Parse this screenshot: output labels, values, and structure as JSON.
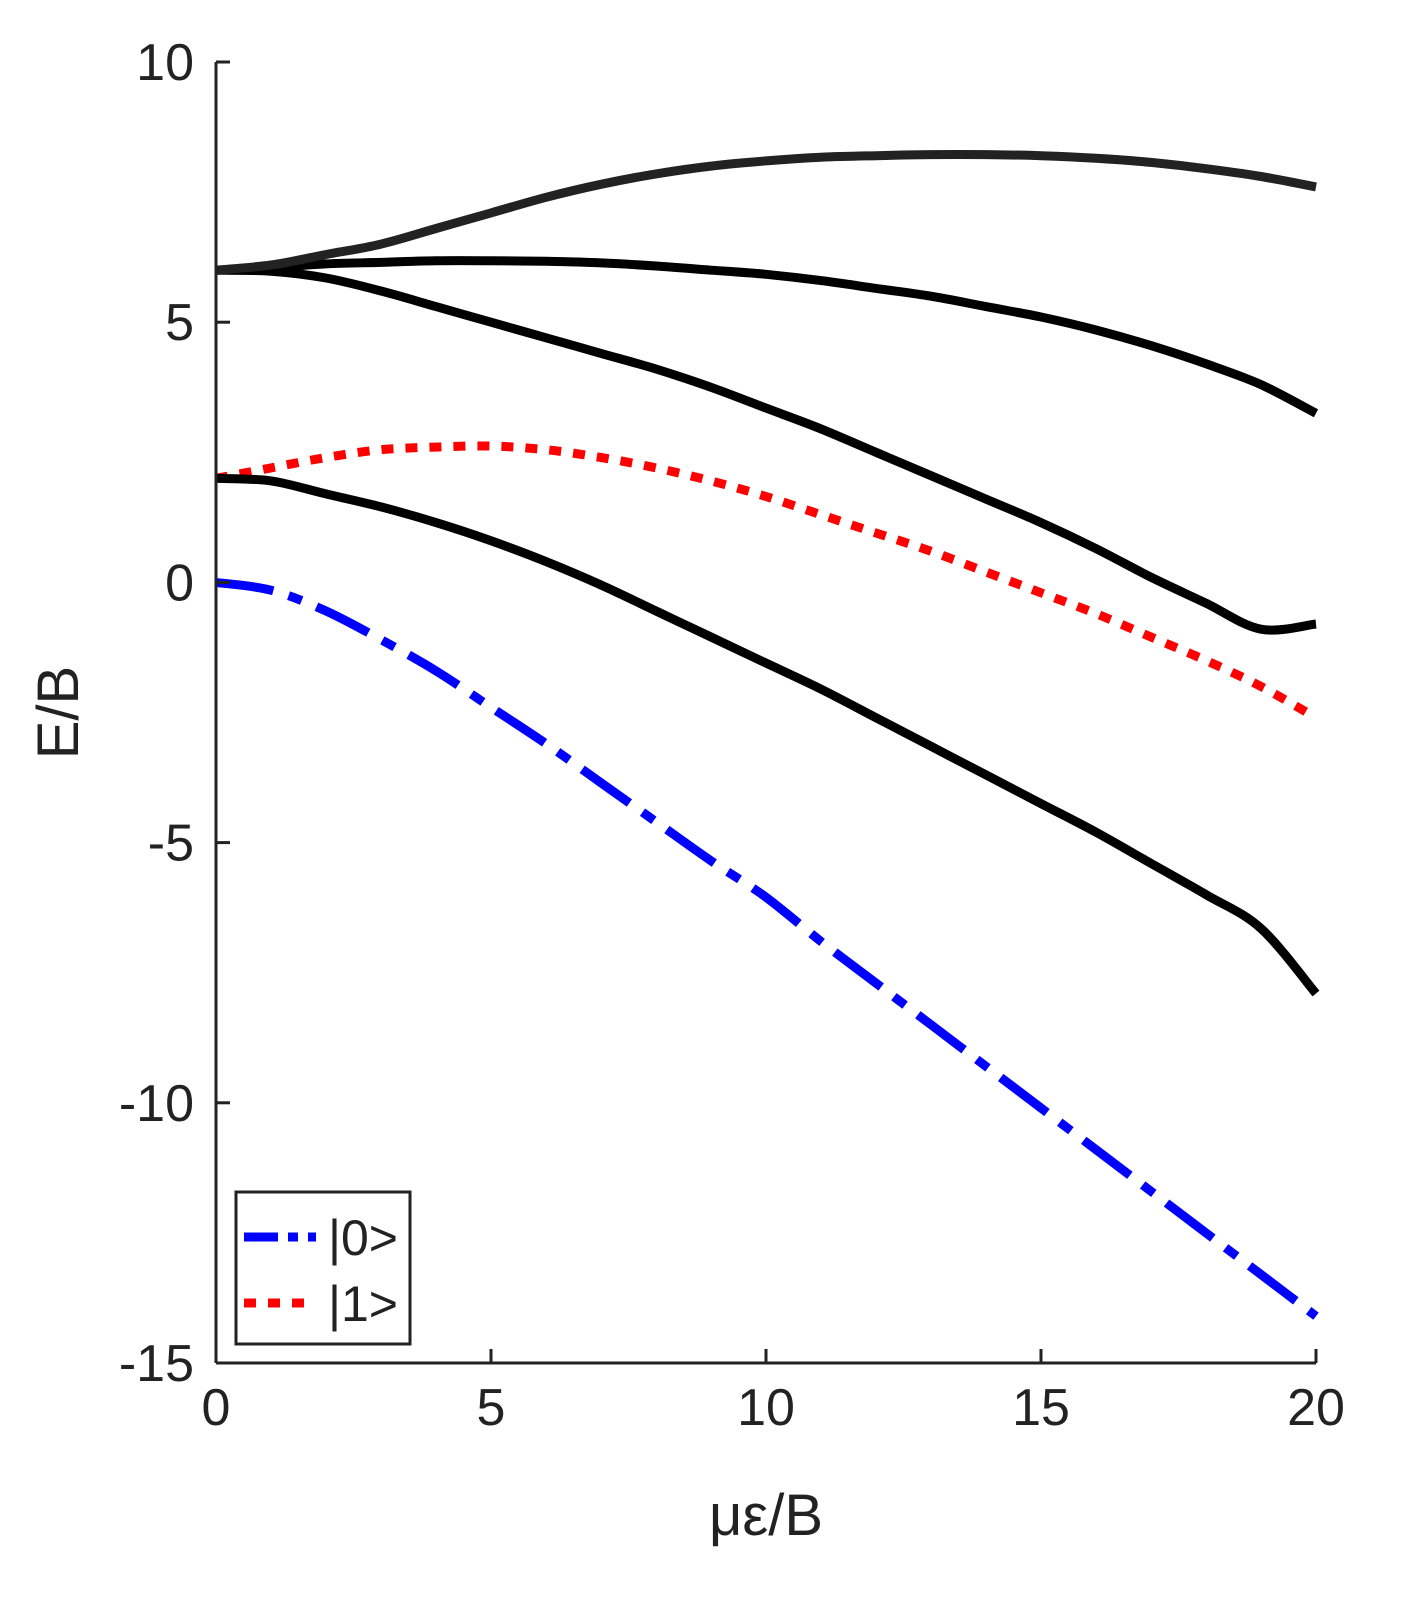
{
  "chart_data": {
    "type": "line",
    "xlabel": "με/B",
    "ylabel": "E/B",
    "xlim": [
      0,
      20
    ],
    "ylim": [
      -15,
      10
    ],
    "xticks": [
      0,
      5,
      10,
      15,
      20
    ],
    "xtick_labels": [
      "0",
      "5",
      "10",
      "15",
      "20"
    ],
    "yticks": [
      -15,
      -10,
      -5,
      0,
      5,
      10
    ],
    "ytick_labels": [
      "-15",
      "-10",
      "-5",
      "0",
      "5",
      "10"
    ],
    "grid": false,
    "legend_position": "bottom-left",
    "x": [
      0,
      1,
      2,
      3,
      4,
      5,
      6,
      7,
      8,
      9,
      10,
      11,
      12,
      13,
      14,
      15,
      16,
      17,
      18,
      19,
      20
    ],
    "series": [
      {
        "name": "|0>",
        "style": "dashdot",
        "color": "#0000ff",
        "in_legend": true,
        "values": [
          0.0,
          -0.15,
          -0.55,
          -1.1,
          -1.7,
          -2.4,
          -3.1,
          -3.85,
          -4.6,
          -5.35,
          -6.05,
          -6.9,
          -7.7,
          -8.5,
          -9.3,
          -10.1,
          -10.9,
          -11.7,
          -12.5,
          -13.3,
          -14.1
        ]
      },
      {
        "name": "|1>",
        "style": "dotted",
        "color": "#ff0000",
        "in_legend": true,
        "values": [
          2.0,
          2.2,
          2.4,
          2.55,
          2.6,
          2.62,
          2.55,
          2.4,
          2.2,
          1.95,
          1.65,
          1.3,
          0.95,
          0.6,
          0.2,
          -0.2,
          -0.6,
          -1.05,
          -1.5,
          -2.0,
          -2.6
        ]
      },
      {
        "style": "solid",
        "color": "#000000",
        "in_legend": false,
        "values": [
          2.0,
          1.95,
          1.7,
          1.45,
          1.15,
          0.8,
          0.4,
          -0.05,
          -0.55,
          -1.05,
          -1.55,
          -2.05,
          -2.6,
          -3.15,
          -3.7,
          -4.25,
          -4.8,
          -5.4,
          -6.0,
          -6.65,
          -7.9
        ]
      },
      {
        "style": "solid",
        "color": "#000000",
        "in_legend": false,
        "values": [
          6.0,
          5.98,
          5.85,
          5.6,
          5.3,
          5.0,
          4.7,
          4.4,
          4.1,
          3.75,
          3.35,
          2.95,
          2.5,
          2.05,
          1.6,
          1.15,
          0.65,
          0.1,
          -0.4,
          -0.9,
          -0.8
        ]
      },
      {
        "style": "solid",
        "color": "#000000",
        "in_legend": false,
        "values": [
          6.0,
          6.05,
          6.12,
          6.15,
          6.18,
          6.18,
          6.17,
          6.14,
          6.08,
          6.0,
          5.92,
          5.8,
          5.65,
          5.5,
          5.3,
          5.1,
          4.85,
          4.55,
          4.2,
          3.8,
          3.25
        ]
      },
      {
        "style": "solid",
        "color": "#222222",
        "in_legend": false,
        "values": [
          6.0,
          6.1,
          6.3,
          6.5,
          6.8,
          7.1,
          7.4,
          7.65,
          7.85,
          8.0,
          8.1,
          8.17,
          8.2,
          8.22,
          8.22,
          8.2,
          8.15,
          8.07,
          7.95,
          7.8,
          7.6
        ]
      }
    ]
  }
}
